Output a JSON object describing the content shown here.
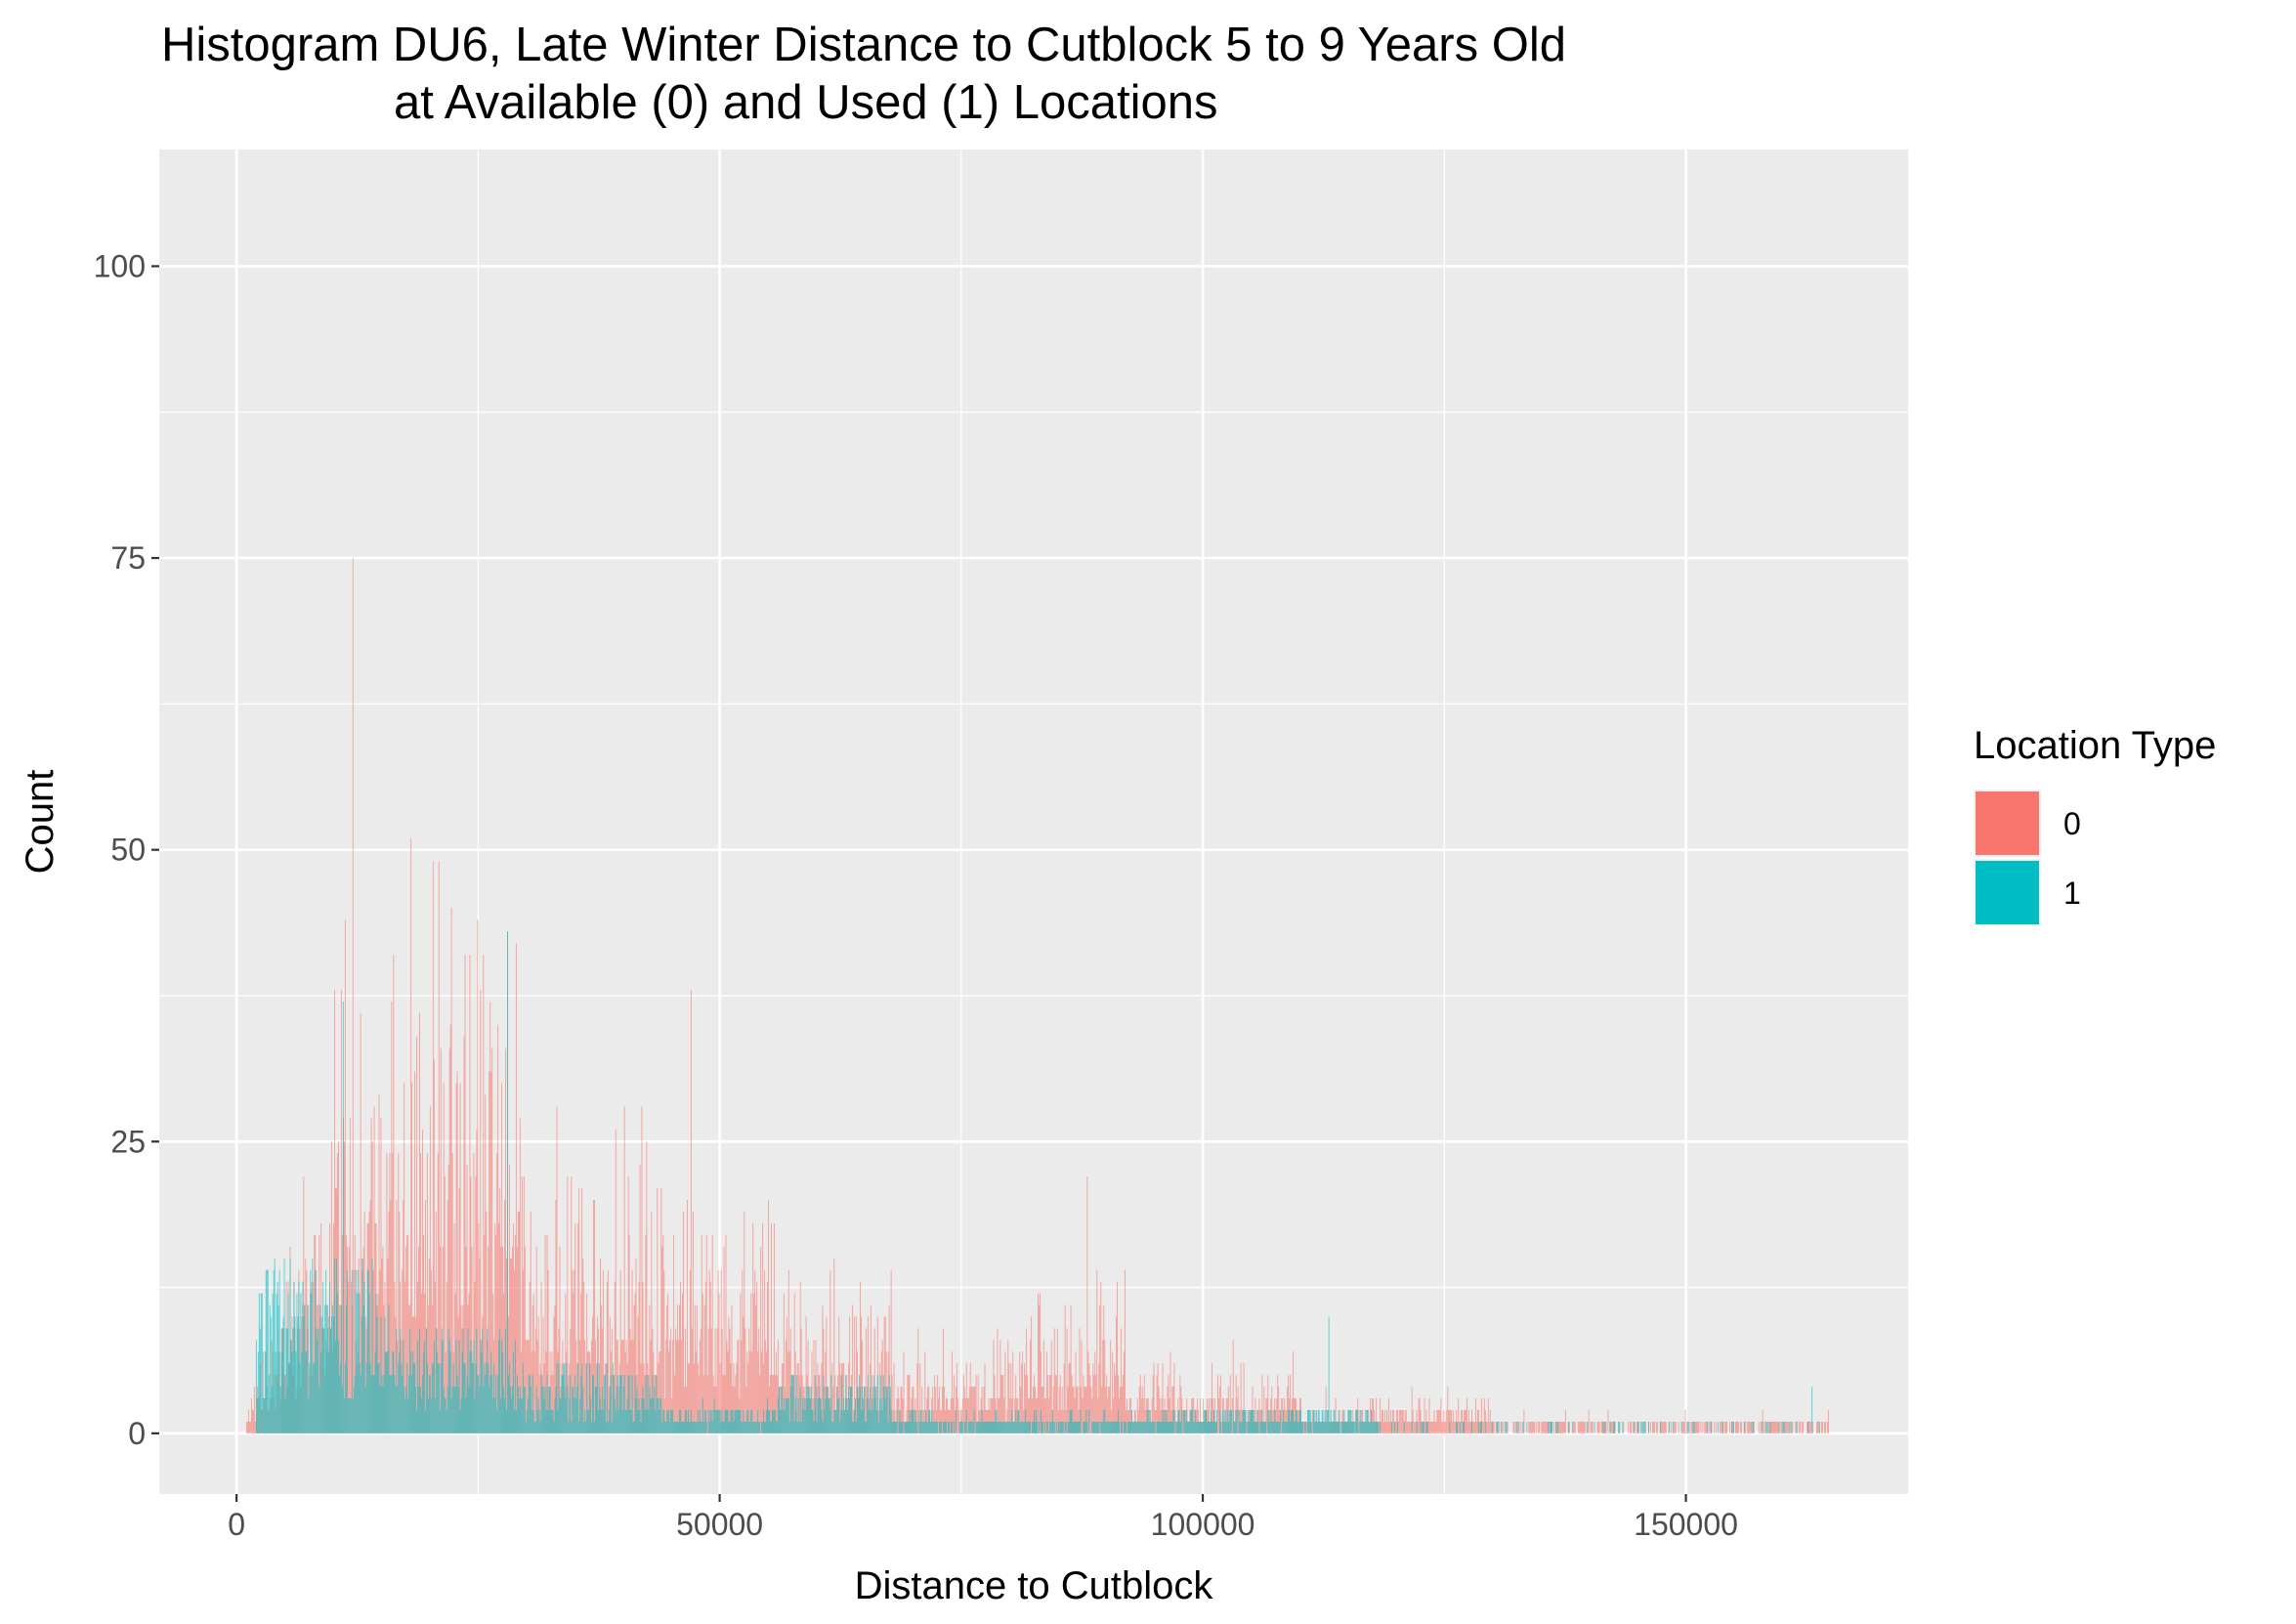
{
  "chart_data": {
    "type": "bar",
    "title_lines": [
      "Histogram DU6, Late Winter Distance to Cutblock 5 to 9 Years Old",
      "at Available (0) and Used (1) Locations"
    ],
    "xlabel": "Distance to Cutblock",
    "ylabel": "Count",
    "xlim": [
      -8000,
      173000
    ],
    "ylim": [
      -5.2,
      110
    ],
    "x_ticks": [
      0,
      50000,
      100000,
      150000
    ],
    "x_tick_labels": [
      "0",
      "50000",
      "100000",
      "150000"
    ],
    "x_minor_ticks": [
      25000,
      75000,
      125000
    ],
    "y_ticks": [
      0,
      25,
      50,
      75,
      100
    ],
    "y_tick_labels": [
      "0",
      "25",
      "50",
      "75",
      "100"
    ],
    "y_minor_ticks": [
      12.5,
      37.5,
      62.5,
      87.5
    ],
    "grid": true,
    "legend": {
      "title": "Location Type",
      "position": "right",
      "entries": [
        {
          "label": "0",
          "color": "#F8766D"
        },
        {
          "label": "1",
          "color": "#00BFC4"
        }
      ]
    },
    "bar_alpha": 0.6,
    "series": [
      {
        "name": "0",
        "color": "#F8766D",
        "x": [
          12000,
          18000,
          28000,
          47000,
          88000
        ],
        "values": [
          75,
          51,
          43,
          38,
          22
        ]
      },
      {
        "name": "1",
        "color": "#00BFC4",
        "x": [
          11000,
          28000,
          113000,
          163000
        ],
        "values": [
          37,
          43,
          10,
          4
        ]
      }
    ]
  },
  "colors": {
    "panel_background": "#EBEBEB",
    "grid_major": "#FFFFFF",
    "grid_minor": "#F5F5F5"
  }
}
